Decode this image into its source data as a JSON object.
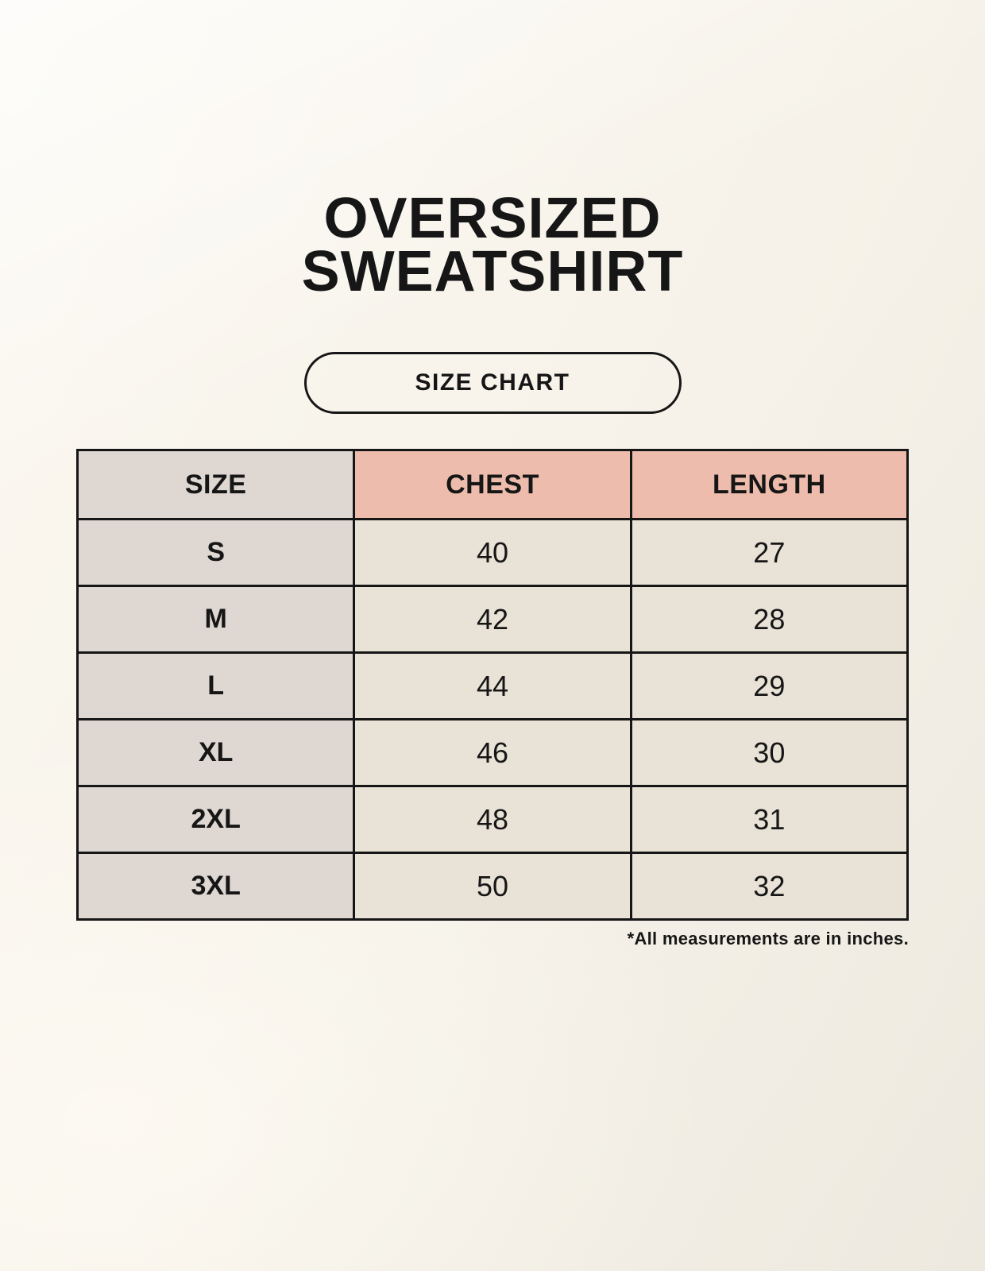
{
  "page": {
    "title_line1": "OVERSIZED",
    "title_line2": "SWEATSHIRT",
    "badge_label": "SIZE CHART",
    "footnote": "*All measurements are in inches."
  },
  "chart_data": {
    "type": "table",
    "title": "Oversized Sweatshirt Size Chart",
    "columns": [
      "SIZE",
      "CHEST",
      "LENGTH"
    ],
    "rows": [
      {
        "size": "S",
        "chest": 40,
        "length": 27
      },
      {
        "size": "M",
        "chest": 42,
        "length": 28
      },
      {
        "size": "L",
        "chest": 44,
        "length": 29
      },
      {
        "size": "XL",
        "chest": 46,
        "length": 30
      },
      {
        "size": "2XL",
        "chest": 48,
        "length": 31
      },
      {
        "size": "3XL",
        "chest": 50,
        "length": 32
      }
    ],
    "units": "inches"
  },
  "colors": {
    "background": "#f7f3ea",
    "header_pink": "#edbcac",
    "size_column_gray": "#ded7d2",
    "cell_cream": "#e9e2d6",
    "border_black": "#161616",
    "text": "#161616"
  }
}
